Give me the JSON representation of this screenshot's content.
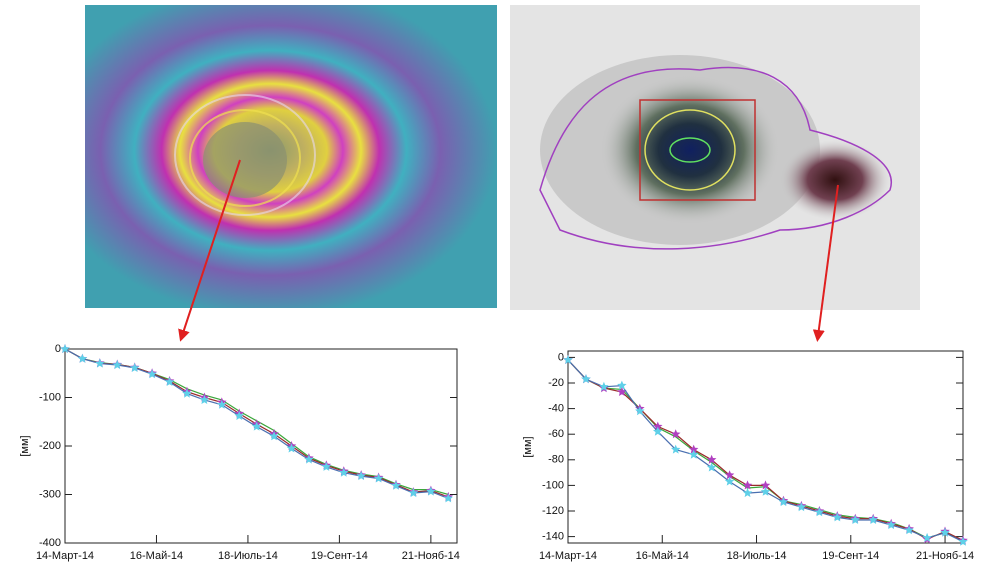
{
  "chart_data": [
    {
      "type": "line",
      "y_label": "[мм]",
      "x": [
        "2014-03-14",
        "2014-03-26",
        "2014-04-07",
        "2014-04-19",
        "2014-05-01",
        "2014-05-13",
        "2014-05-25",
        "2014-06-06",
        "2014-06-18",
        "2014-06-30",
        "2014-07-12",
        "2014-07-24",
        "2014-08-05",
        "2014-08-17",
        "2014-08-29",
        "2014-09-10",
        "2014-09-22",
        "2014-10-04",
        "2014-10-16",
        "2014-10-28",
        "2014-11-09",
        "2014-11-21",
        "2014-12-03"
      ],
      "series": [
        {
          "color": "#3aa63a",
          "marker": "none",
          "values": [
            0,
            -20,
            -28,
            -32,
            -38,
            -50,
            -63,
            -82,
            -95,
            -105,
            -128,
            -148,
            -168,
            -195,
            -222,
            -238,
            -250,
            -258,
            -263,
            -278,
            -290,
            -290,
            -300
          ]
        },
        {
          "color": "#9a2a2a",
          "marker": "star",
          "marker_color": "#b040c0",
          "values": [
            0,
            -20,
            -29,
            -32,
            -38,
            -50,
            -66,
            -88,
            -100,
            -110,
            -133,
            -155,
            -175,
            -200,
            -225,
            -240,
            -252,
            -260,
            -265,
            -280,
            -295,
            -292,
            -305
          ]
        },
        {
          "color": "#4a6fb0",
          "marker": "star",
          "marker_color": "#5fd0e8",
          "values": [
            0,
            -20,
            -30,
            -33,
            -39,
            -52,
            -68,
            -92,
            -105,
            -115,
            -138,
            -160,
            -180,
            -205,
            -228,
            -243,
            -255,
            -262,
            -267,
            -282,
            -297,
            -294,
            -308
          ]
        }
      ],
      "xlim": [
        "2014-03-14",
        "2014-12-09"
      ],
      "xticks": [
        {
          "value": "2014-03-14",
          "label": "14-Март-14"
        },
        {
          "value": "2014-05-16",
          "label": "16-Май-14"
        },
        {
          "value": "2014-07-18",
          "label": "18-Июль-14"
        },
        {
          "value": "2014-09-19",
          "label": "19-Сент-14"
        },
        {
          "value": "2014-11-21",
          "label": "21-Нояб-14"
        }
      ],
      "ylim": [
        -400,
        0
      ],
      "yticks": [
        0,
        -100,
        -200,
        -300,
        -400
      ]
    },
    {
      "type": "line",
      "y_label": "[мм]",
      "x": [
        "2014-03-14",
        "2014-03-26",
        "2014-04-07",
        "2014-04-19",
        "2014-05-01",
        "2014-05-13",
        "2014-05-25",
        "2014-06-06",
        "2014-06-18",
        "2014-06-30",
        "2014-07-12",
        "2014-07-24",
        "2014-08-05",
        "2014-08-17",
        "2014-08-29",
        "2014-09-10",
        "2014-09-22",
        "2014-10-04",
        "2014-10-16",
        "2014-10-28",
        "2014-11-09",
        "2014-11-21",
        "2014-12-03"
      ],
      "series": [
        {
          "color": "#3aa63a",
          "marker": "none",
          "values": [
            -2,
            -17,
            -24,
            -25,
            -40,
            -55,
            -62,
            -73,
            -82,
            -93,
            -102,
            -101,
            -112,
            -115,
            -119,
            -123,
            -125,
            -126,
            -129,
            -134,
            -141,
            -137,
            -143
          ]
        },
        {
          "color": "#9a2a2a",
          "marker": "star",
          "marker_color": "#b040c0",
          "values": [
            -2,
            -17,
            -24,
            -27,
            -40,
            -54,
            -60,
            -72,
            -80,
            -92,
            -100,
            -100,
            -112,
            -116,
            -120,
            -124,
            -126,
            -126,
            -130,
            -134,
            -142,
            -136,
            -143
          ]
        },
        {
          "color": "#4a6fb0",
          "marker": "star",
          "marker_color": "#5fd0e8",
          "values": [
            -2,
            -17,
            -23,
            -22,
            -42,
            -58,
            -72,
            -76,
            -86,
            -97,
            -106,
            -105,
            -113,
            -117,
            -121,
            -125,
            -127,
            -127,
            -131,
            -135,
            -141,
            -137,
            -144
          ]
        }
      ],
      "xlim": [
        "2014-03-14",
        "2014-12-03"
      ],
      "xticks": [
        {
          "value": "2014-03-14",
          "label": "14-Март-14"
        },
        {
          "value": "2014-05-16",
          "label": "16-Май-14"
        },
        {
          "value": "2014-07-18",
          "label": "18-Июль-14"
        },
        {
          "value": "2014-09-19",
          "label": "19-Сент-14"
        },
        {
          "value": "2014-11-21",
          "label": "21-Нояб-14"
        }
      ],
      "ylim": [
        -145,
        5
      ],
      "yticks": [
        0,
        -20,
        -40,
        -60,
        -80,
        -100,
        -120,
        -140
      ]
    }
  ]
}
